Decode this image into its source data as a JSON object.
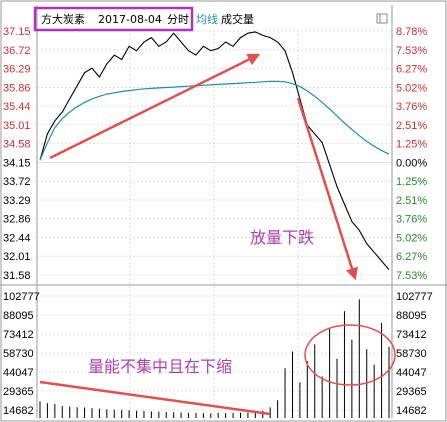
{
  "header": {
    "stock_name": "方大炭素",
    "date": "2017-08-04",
    "view": "分时",
    "indicator_label": "均线",
    "volume_label": "成交量"
  },
  "annotations": {
    "price_note": "放量下跌",
    "volume_note": "量能不集中且在下缩"
  },
  "colors": {
    "price_line": "#000000",
    "avg_line": "#1e8fa6",
    "up_tick": "#d03030",
    "neutral_tick": "#000000",
    "highlight_box": "#b030c0",
    "arrow": "#e05050",
    "grid": "#c8c8c8"
  },
  "chart_data": {
    "type": "line",
    "title": "方大炭素 2017-08-04 分时",
    "price_ticks_left": [
      "37.15",
      "36.72",
      "36.29",
      "35.86",
      "35.44",
      "35.01",
      "34.58",
      "34.15",
      "33.72",
      "33.29",
      "32.86",
      "32.44",
      "32.01",
      "31.58"
    ],
    "pct_ticks_right": [
      "8.78%",
      "7.53%",
      "6.27%",
      "5.02%",
      "3.76%",
      "2.51%",
      "1.25%",
      "0.00%",
      "1.25%",
      "2.51%",
      "3.76%",
      "5.02%",
      "6.27%",
      "7.53%"
    ],
    "volume_ticks_left": [
      "102777",
      "88095",
      "73412",
      "58730",
      "44047",
      "29365",
      "14682"
    ],
    "volume_ticks_right": [
      "102777",
      "88095",
      "73412",
      "58730",
      "44047",
      "29365",
      "14682"
    ],
    "price_range": [
      31.58,
      37.15
    ],
    "volume_range": [
      0,
      102777
    ],
    "series": [
      {
        "name": "分时",
        "values": [
          34.2,
          34.8,
          35.1,
          35.3,
          35.6,
          35.9,
          36.2,
          36.3,
          36.1,
          36.4,
          36.6,
          36.5,
          36.8,
          36.7,
          36.9,
          37.0,
          36.8,
          36.9,
          37.1,
          36.9,
          36.7,
          36.6,
          36.8,
          36.7,
          36.75,
          36.9,
          36.8,
          37.0,
          37.1,
          37.13,
          37.05,
          37.0,
          36.9,
          36.7,
          36.2,
          35.6,
          35.0,
          34.8,
          34.6,
          34.1,
          33.6,
          33.2,
          32.8,
          32.6,
          32.3,
          32.1,
          31.9,
          31.7
        ]
      },
      {
        "name": "均线",
        "values": [
          34.2,
          34.6,
          34.95,
          35.15,
          35.3,
          35.42,
          35.52,
          35.6,
          35.66,
          35.71,
          35.74,
          35.77,
          35.79,
          35.81,
          35.83,
          35.84,
          35.85,
          35.86,
          35.87,
          35.88,
          35.89,
          35.9,
          35.91,
          35.92,
          35.93,
          35.94,
          35.95,
          35.96,
          35.97,
          35.98,
          35.99,
          36.0,
          36.0,
          35.99,
          35.95,
          35.88,
          35.78,
          35.66,
          35.52,
          35.37,
          35.21,
          35.05,
          34.9,
          34.76,
          34.63,
          34.52,
          34.42,
          34.34
        ]
      }
    ],
    "volume_bars": [
      14000,
      12500,
      11800,
      10200,
      9600,
      9100,
      8800,
      8300,
      7900,
      7400,
      7000,
      6800,
      6400,
      6100,
      5900,
      5600,
      5300,
      5100,
      4900,
      4700,
      4500,
      4300,
      4200,
      4000,
      4300,
      4100,
      4200,
      4400,
      4600,
      5200,
      6000,
      9000,
      15000,
      42000,
      56000,
      30000,
      48000,
      62000,
      35000,
      75000,
      50000,
      90000,
      66000,
      100000,
      58000,
      45000,
      80000,
      60000
    ]
  }
}
